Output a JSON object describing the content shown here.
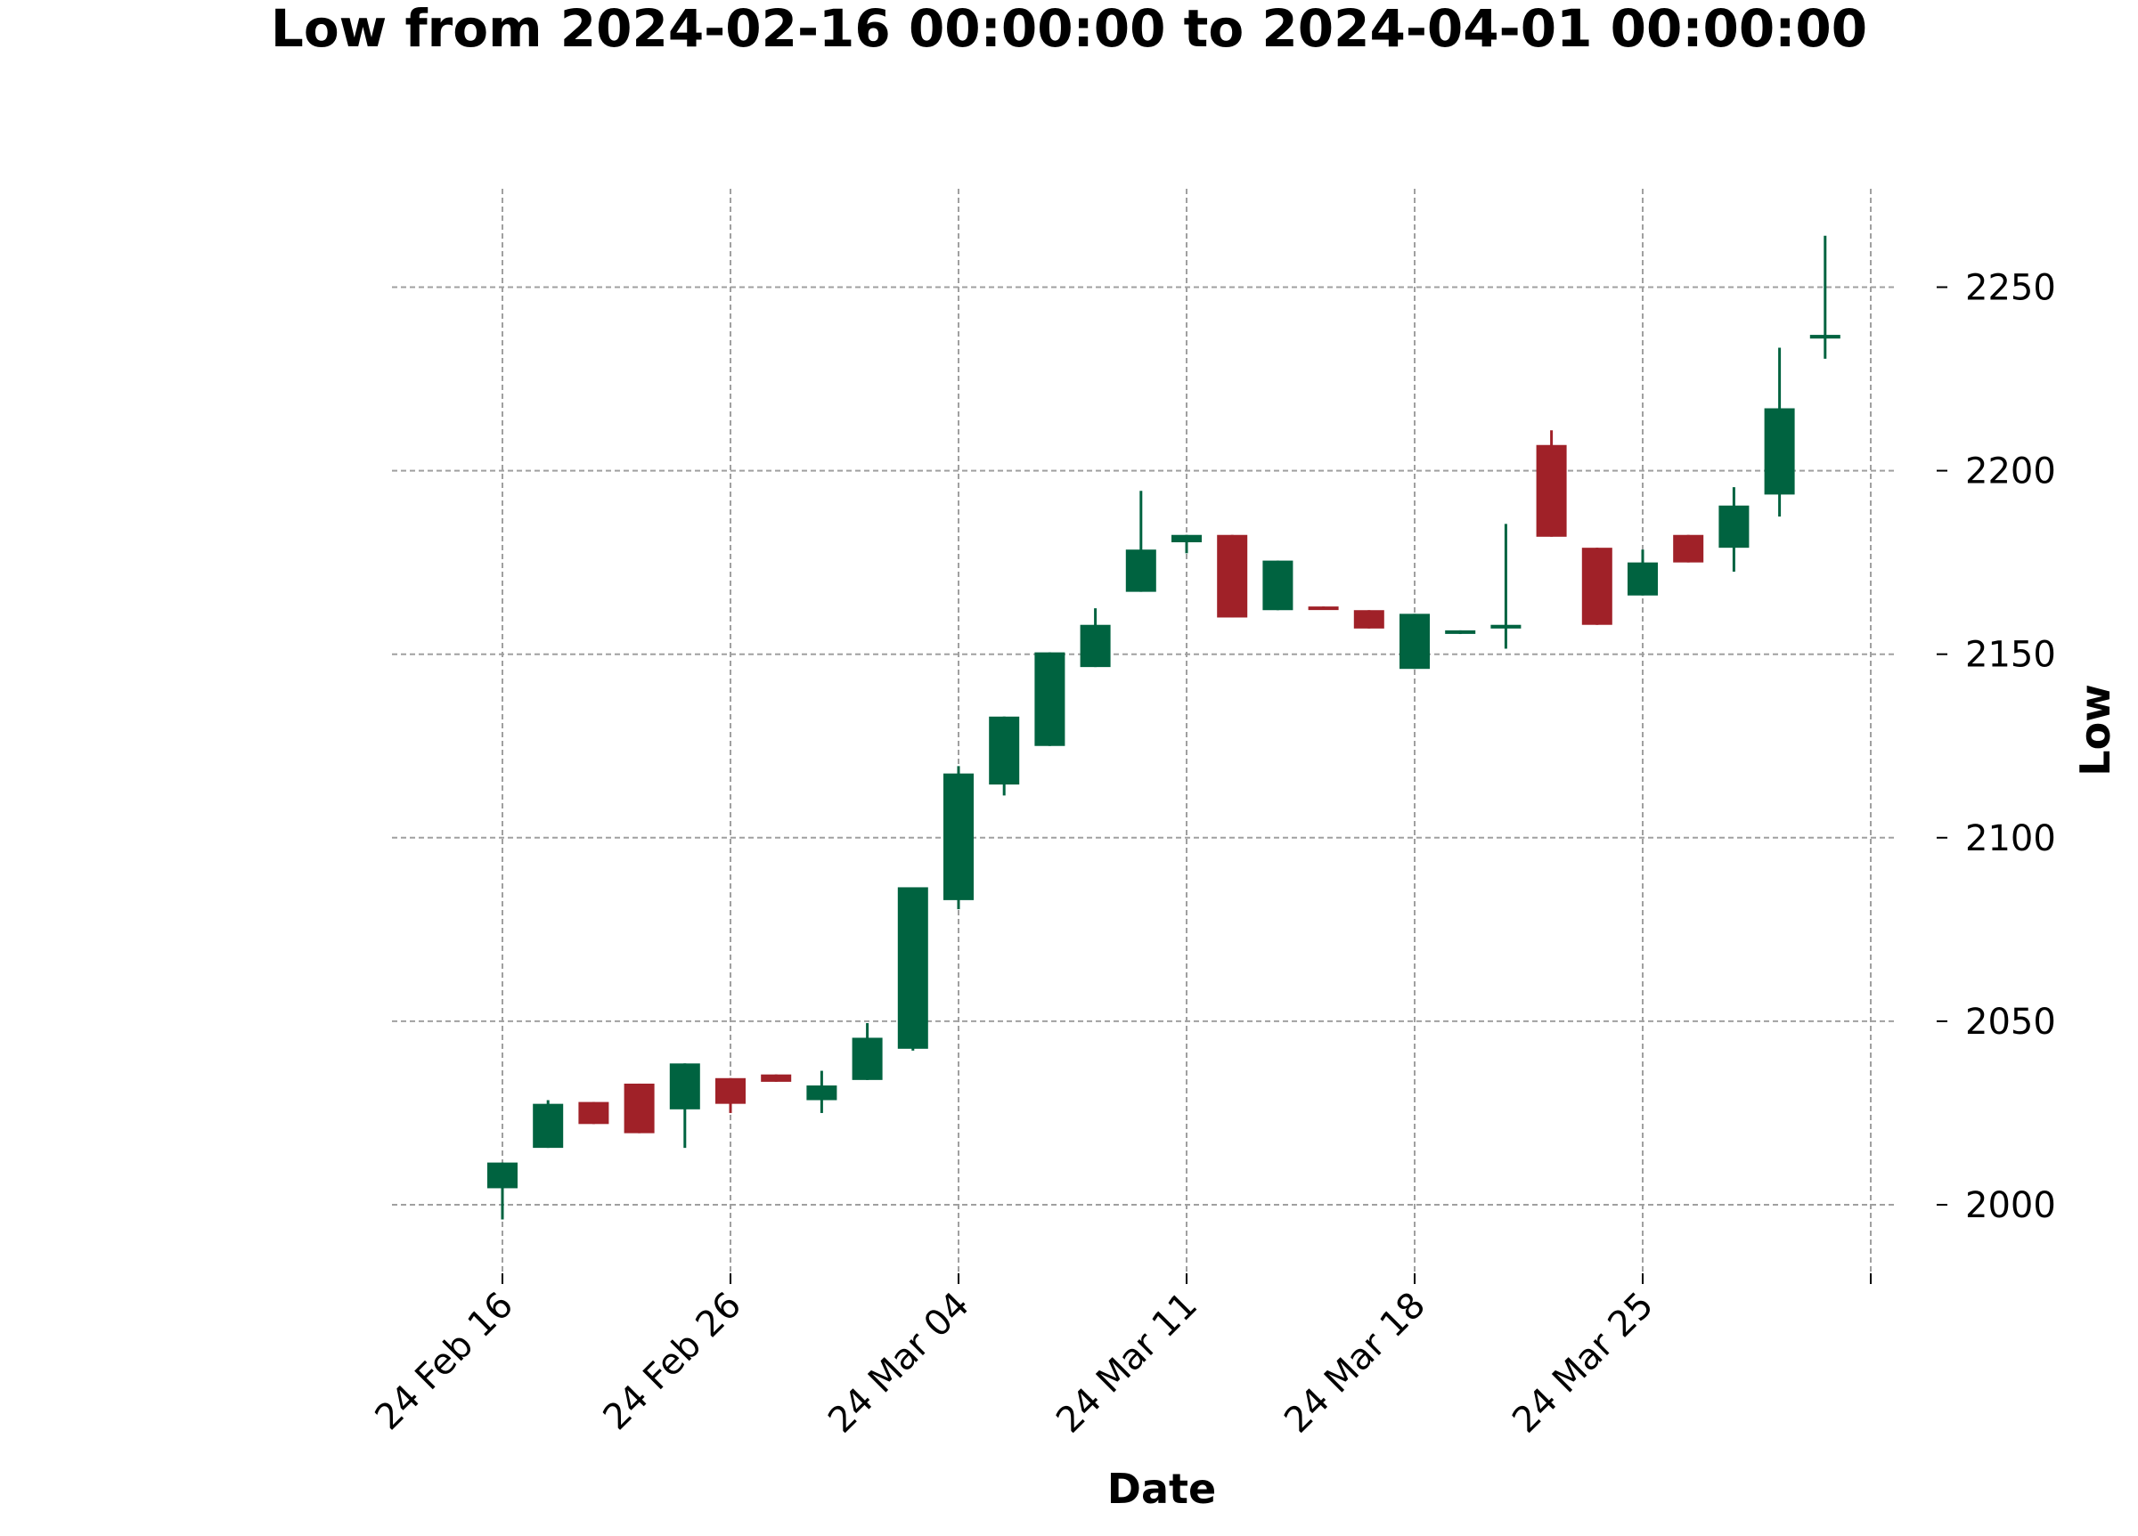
{
  "chart_data": {
    "type": "candlestick",
    "title": "Low from 2024-02-16 00:00:00 to 2024-04-01 00:00:00",
    "xlabel": "Date",
    "ylabel": "Low",
    "ylim": [
      1981,
      2276
    ],
    "yticks": [
      2000,
      2050,
      2100,
      2150,
      2200,
      2250
    ],
    "xticks": [
      {
        "index": 0,
        "label": "24 Feb 16"
      },
      {
        "index": 5,
        "label": "24 Feb 26"
      },
      {
        "index": 10,
        "label": "24 Mar 04"
      },
      {
        "index": 15,
        "label": "24 Mar 11"
      },
      {
        "index": 20,
        "label": "24 Mar 18"
      },
      {
        "index": 25,
        "label": "24 Mar 25"
      },
      {
        "index": 30,
        "label": ""
      }
    ],
    "grid": true,
    "colors": {
      "up": "#006340",
      "down": "#a02128",
      "grid": "#a0a0a0"
    },
    "candles": [
      {
        "open": 2004.5,
        "high": 2011.5,
        "low": 1996.0,
        "close": 2011.5
      },
      {
        "open": 2015.5,
        "high": 2028.5,
        "low": 2015.5,
        "close": 2027.5
      },
      {
        "open": 2028.0,
        "high": 2028.0,
        "low": 2022.0,
        "close": 2022.0
      },
      {
        "open": 2033.0,
        "high": 2033.0,
        "low": 2019.5,
        "close": 2019.5
      },
      {
        "open": 2026.0,
        "high": 2038.5,
        "low": 2015.5,
        "close": 2038.5
      },
      {
        "open": 2034.5,
        "high": 2034.5,
        "low": 2025.0,
        "close": 2027.5
      },
      {
        "open": 2035.5,
        "high": 2035.5,
        "low": 2033.5,
        "close": 2033.5
      },
      {
        "open": 2028.5,
        "high": 2036.5,
        "low": 2025.0,
        "close": 2032.5
      },
      {
        "open": 2034.0,
        "high": 2049.5,
        "low": 2034.0,
        "close": 2045.5
      },
      {
        "open": 2042.5,
        "high": 2086.5,
        "low": 2042.0,
        "close": 2086.5
      },
      {
        "open": 2083.0,
        "high": 2119.5,
        "low": 2080.5,
        "close": 2117.5
      },
      {
        "open": 2114.5,
        "high": 2133.0,
        "low": 2111.5,
        "close": 2133.0
      },
      {
        "open": 2125.0,
        "high": 2150.5,
        "low": 2125.0,
        "close": 2150.5
      },
      {
        "open": 2146.5,
        "high": 2162.5,
        "low": 2146.5,
        "close": 2158.0
      },
      {
        "open": 2167.0,
        "high": 2194.5,
        "low": 2167.0,
        "close": 2178.5
      },
      {
        "open": 2180.5,
        "high": 2182.5,
        "low": 2177.5,
        "close": 2182.5
      },
      {
        "open": 2182.5,
        "high": 2182.5,
        "low": 2160.0,
        "close": 2160.0
      },
      {
        "open": 2162.0,
        "high": 2175.5,
        "low": 2162.0,
        "close": 2175.5
      },
      {
        "open": 2163.0,
        "high": 2163.0,
        "low": 2162.5,
        "close": 2162.5
      },
      {
        "open": 2162.0,
        "high": 2162.0,
        "low": 2157.0,
        "close": 2157.0
      },
      {
        "open": 2146.0,
        "high": 2161.0,
        "low": 2146.0,
        "close": 2161.0
      },
      {
        "open": 2156.0,
        "high": 2156.5,
        "low": 2155.5,
        "close": 2156.5
      },
      {
        "open": 2157.0,
        "high": 2185.5,
        "low": 2151.5,
        "close": 2158.0
      },
      {
        "open": 2207.0,
        "high": 2211.0,
        "low": 2182.0,
        "close": 2182.0
      },
      {
        "open": 2179.0,
        "high": 2179.0,
        "low": 2158.0,
        "close": 2158.0
      },
      {
        "open": 2166.0,
        "high": 2178.5,
        "low": 2166.0,
        "close": 2175.0
      },
      {
        "open": 2182.5,
        "high": 2182.5,
        "low": 2175.0,
        "close": 2175.0
      },
      {
        "open": 2179.0,
        "high": 2195.5,
        "low": 2172.5,
        "close": 2190.5
      },
      {
        "open": 2193.5,
        "high": 2233.5,
        "low": 2187.5,
        "close": 2217.0
      },
      {
        "open": 2236.0,
        "high": 2264.0,
        "low": 2230.5,
        "close": 2237.0
      }
    ]
  }
}
